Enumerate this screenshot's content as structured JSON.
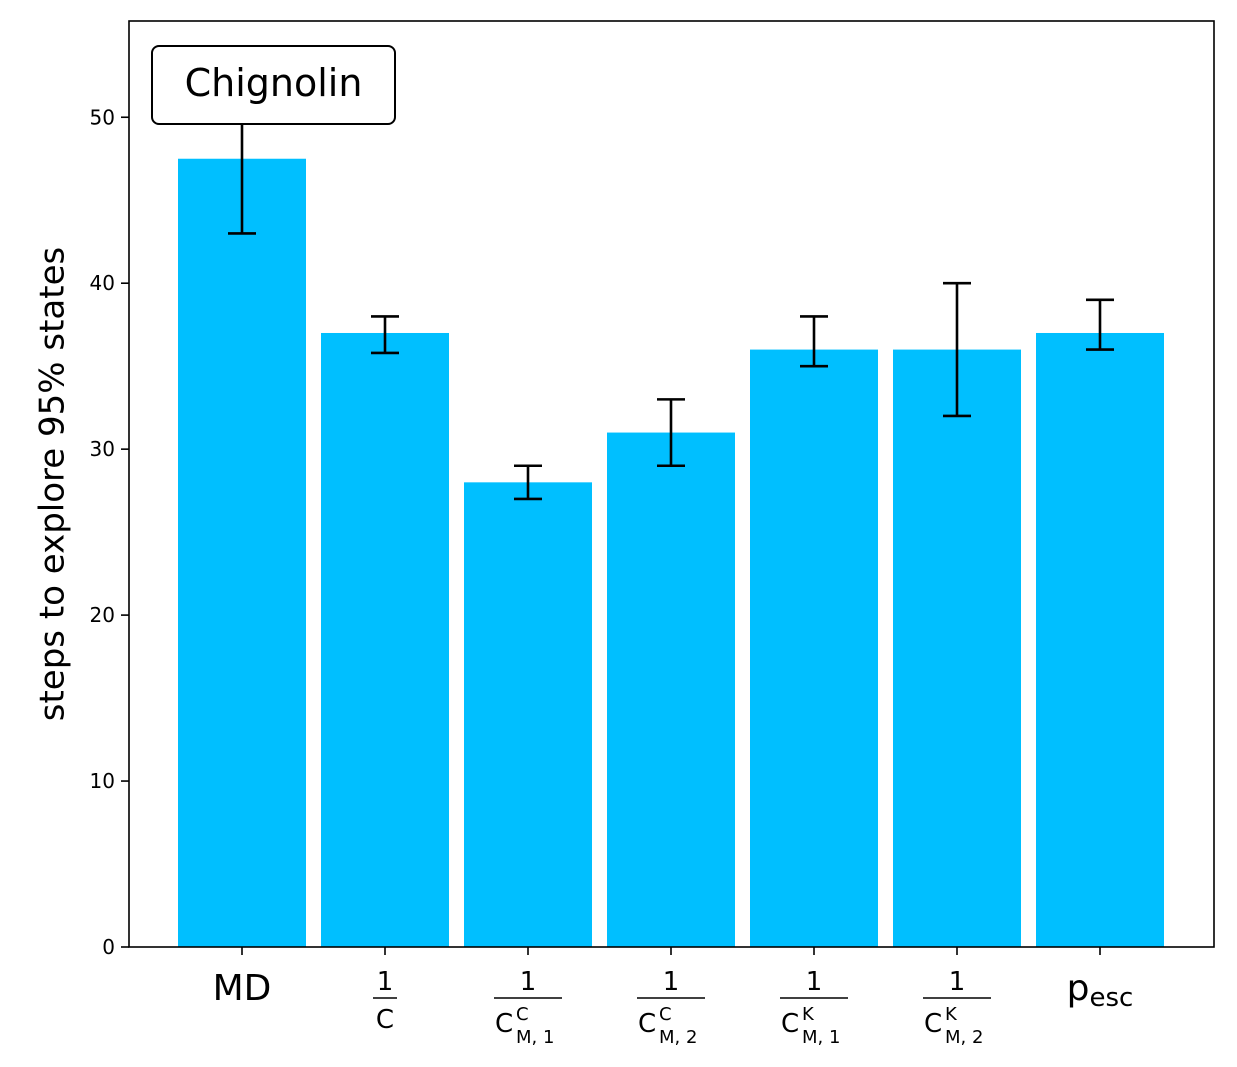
{
  "chart_data": {
    "type": "bar",
    "title": "Chignolin",
    "ylabel": "steps to explore 95% states",
    "xlabel": "",
    "ylim": [
      0,
      55.8
    ],
    "yticks": [
      0,
      10,
      20,
      30,
      40,
      50
    ],
    "ytick_labels": [
      "0",
      "10",
      "20",
      "30",
      "40",
      "50"
    ],
    "categories": [
      {
        "id": "MD",
        "kind": "plain",
        "text": "MD"
      },
      {
        "id": "1/C",
        "kind": "frac",
        "numerator": "1",
        "base": "C",
        "sup": "",
        "sub": ""
      },
      {
        "id": "1/C^C_{M,1}",
        "kind": "frac",
        "numerator": "1",
        "base": "C",
        "sup": "C",
        "sub": "M, 1"
      },
      {
        "id": "1/C^C_{M,2}",
        "kind": "frac",
        "numerator": "1",
        "base": "C",
        "sup": "C",
        "sub": "M, 2"
      },
      {
        "id": "1/C^K_{M,1}",
        "kind": "frac",
        "numerator": "1",
        "base": "C",
        "sup": "K",
        "sub": "M, 1"
      },
      {
        "id": "1/C^K_{M,2}",
        "kind": "frac",
        "numerator": "1",
        "base": "C",
        "sup": "K",
        "sub": "M, 2"
      },
      {
        "id": "p_esc",
        "kind": "subscript",
        "base": "p",
        "sub": "esc"
      }
    ],
    "values": [
      47.5,
      37,
      28,
      31,
      36,
      36,
      37
    ],
    "errors_low": [
      43,
      35.8,
      27,
      29,
      35,
      32,
      36
    ],
    "errors_high": [
      50,
      38,
      29,
      33,
      38,
      40,
      39
    ],
    "colors": {
      "bar": "#00bfff",
      "error": "#000000",
      "axis": "#000000"
    },
    "legend": "none",
    "grid": false
  }
}
